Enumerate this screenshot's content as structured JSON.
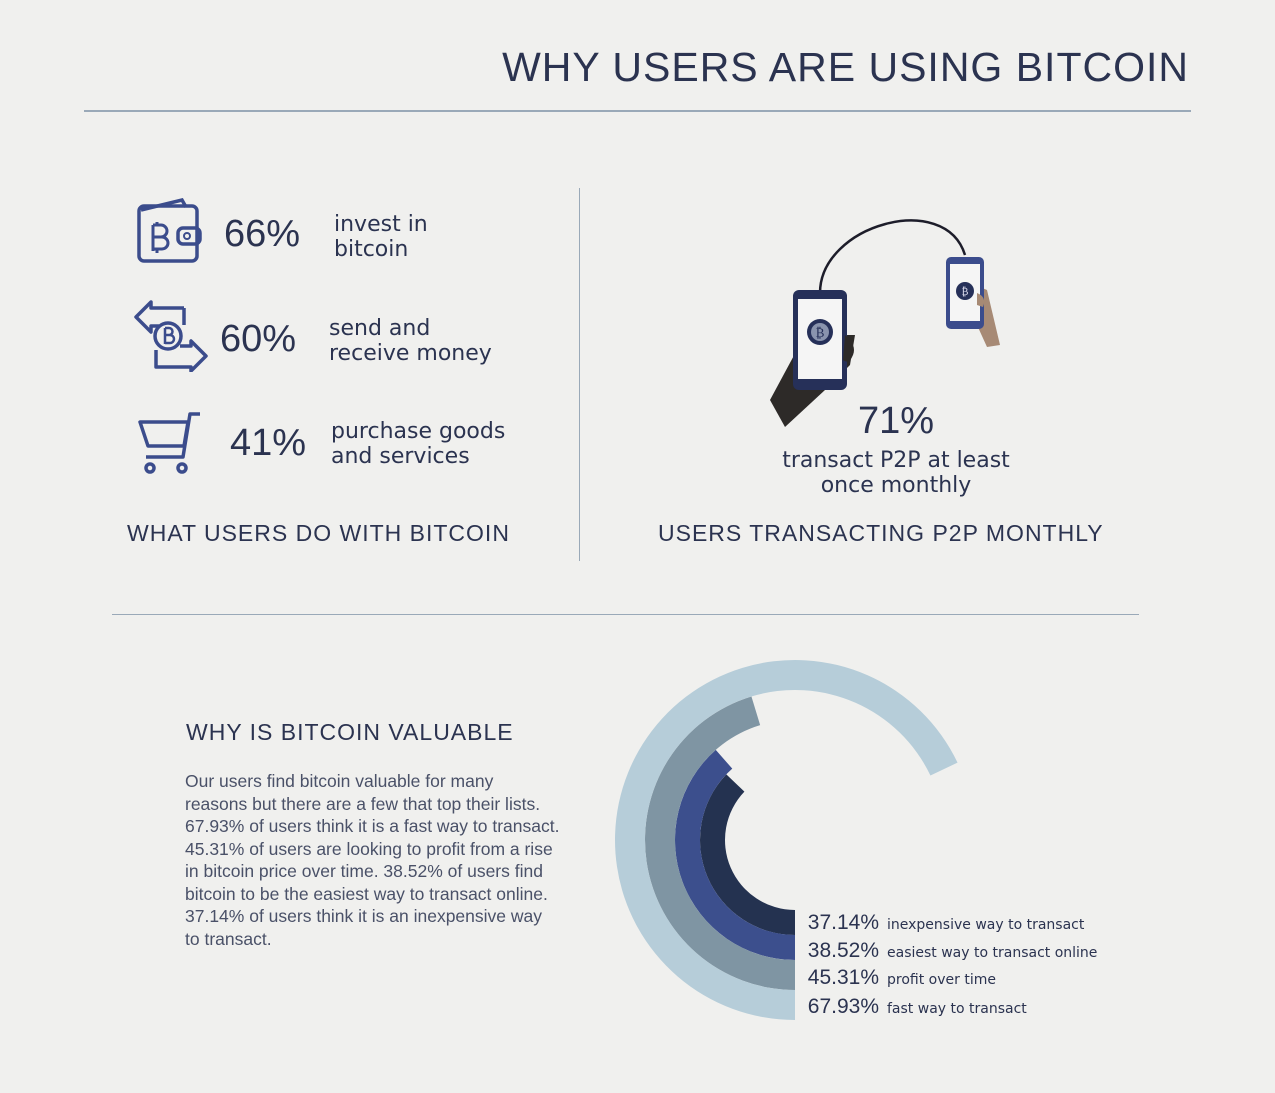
{
  "title": "WHY USERS ARE USING BITCOIN",
  "what_users_do": {
    "heading": "WHAT USERS DO WITH BITCOIN",
    "items": [
      {
        "icon": "bitcoin-wallet-icon",
        "percent": "66%",
        "line1": "invest in",
        "line2": "bitcoin"
      },
      {
        "icon": "bitcoin-exchange-arrows-icon",
        "percent": "60%",
        "line1": "send and",
        "line2": "receive money"
      },
      {
        "icon": "shopping-cart-icon",
        "percent": "41%",
        "line1": "purchase goods",
        "line2": "and services"
      }
    ]
  },
  "p2p": {
    "heading": "USERS TRANSACTING P2P MONTHLY",
    "percent": "71%",
    "line1": "transact P2P at least",
    "line2": "once monthly",
    "icon": "phones-p2p-transfer-icon"
  },
  "valuable": {
    "heading": "WHY IS BITCOIN VALUABLE",
    "paragraph": "Our users find bitcoin valuable for many reasons but there are a few that top their lists. 67.93% of users think it is a fast way to transact. 45.31% of users are looking to profit from a rise in bitcoin price over time. 38.52% of users find bitcoin to be the easiest way to transact online. 37.14% of users think it is an inexpensive way to transact."
  },
  "chart_data": {
    "type": "radial-bar",
    "unit": "%",
    "max": 100,
    "series": [
      {
        "label": "37.14%",
        "name": "inexpensive way to transact",
        "value": 37.14,
        "color": "#243250"
      },
      {
        "label": "38.52%",
        "name": "easiest way to transact online",
        "value": 38.52,
        "color": "#3c4f8d"
      },
      {
        "label": "45.31%",
        "name": "profit over time",
        "value": 45.31,
        "color": "#7f95a3"
      },
      {
        "label": "67.93%",
        "name": "fast way to transact",
        "value": 67.93,
        "color": "#b6cdd9"
      }
    ]
  },
  "colors": {
    "text": "#2b3350",
    "icon": "#3b4c8c",
    "background": "#f0f0ee"
  }
}
